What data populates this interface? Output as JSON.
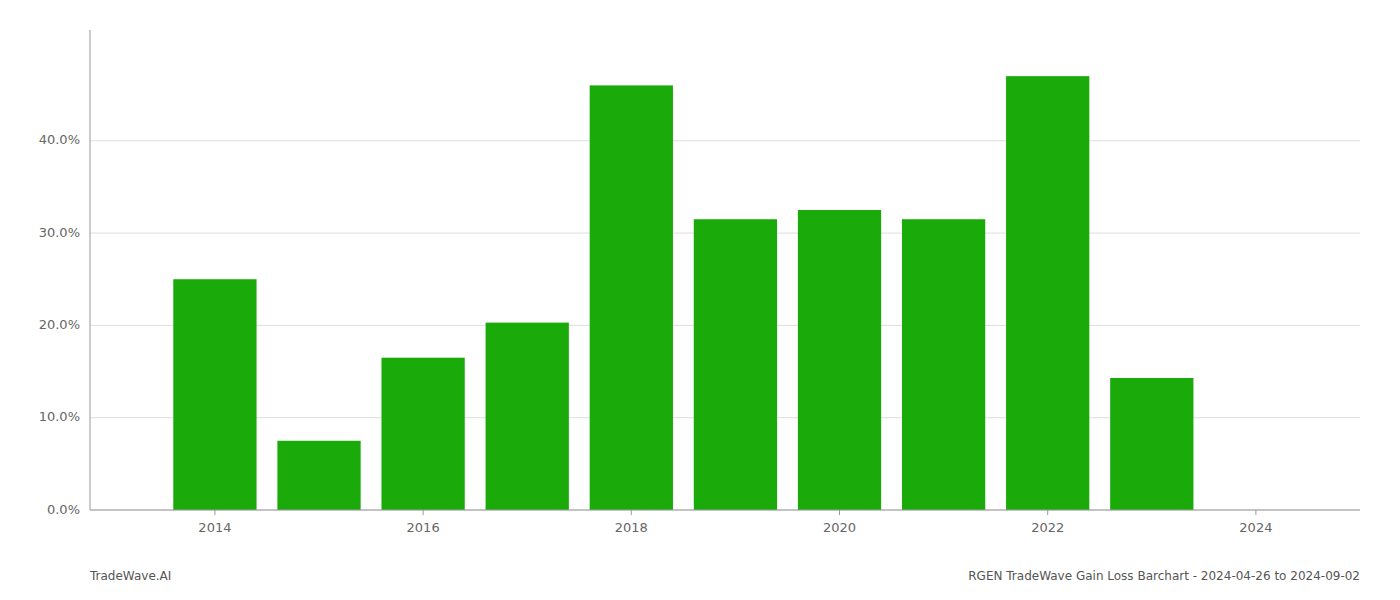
{
  "chart_data": {
    "type": "bar",
    "x": [
      2014,
      2015,
      2016,
      2017,
      2018,
      2019,
      2020,
      2021,
      2022,
      2023
    ],
    "values": [
      0.25,
      0.075,
      0.165,
      0.203,
      0.46,
      0.315,
      0.325,
      0.315,
      0.47,
      0.143
    ],
    "color": "#1aab0a",
    "xlim": [
      2012.8,
      2025.0
    ],
    "xticks": [
      2014,
      2016,
      2018,
      2020,
      2022,
      2024
    ],
    "ylim": [
      0,
      0.52
    ],
    "yticks": [
      {
        "value": 0.0,
        "label": "0.0%"
      },
      {
        "value": 0.1,
        "label": "10.0%"
      },
      {
        "value": 0.2,
        "label": "20.0%"
      },
      {
        "value": 0.3,
        "label": "30.0%"
      },
      {
        "value": 0.4,
        "label": "40.0%"
      }
    ],
    "grid": true,
    "annotations": [
      {
        "text": "TradeWave.AI"
      },
      {
        "text": "RGEN TradeWave Gain Loss Barchart - 2024-04-26 to 2024-09-02"
      }
    ]
  }
}
